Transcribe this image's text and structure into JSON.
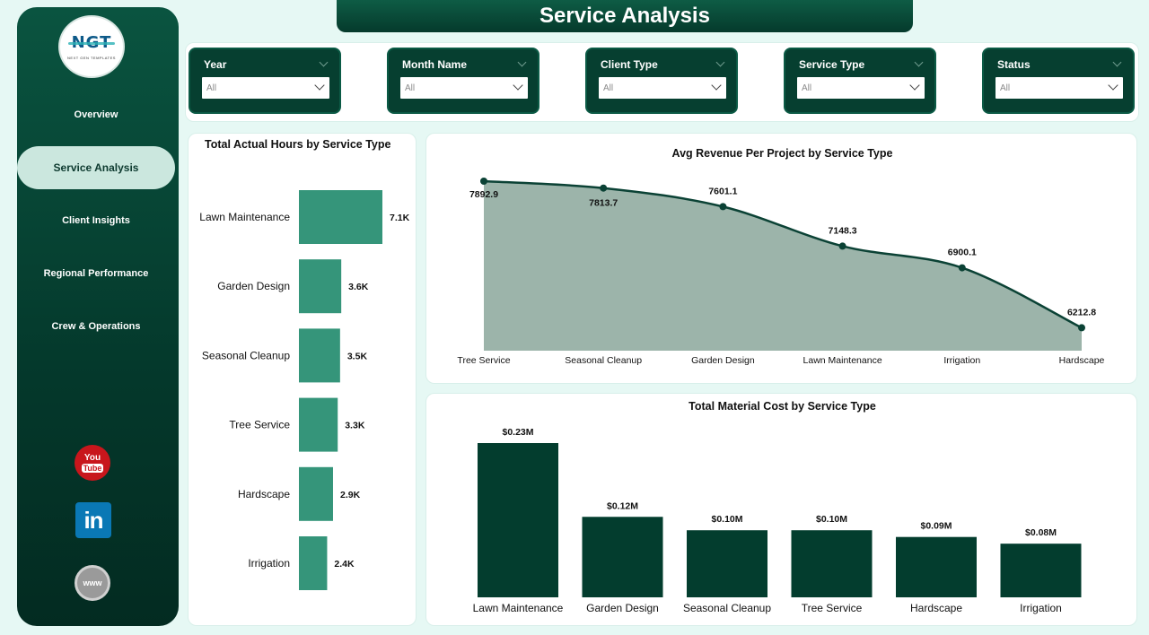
{
  "title": "Service Analysis",
  "sidebar": {
    "logo_text": "NGT",
    "logo_subtext": "NEXT GEN TEMPLATES",
    "items": [
      {
        "label": "Overview",
        "active": false
      },
      {
        "label": "Service Analysis",
        "active": true
      },
      {
        "label": "Client Insights",
        "active": false
      },
      {
        "label": "Regional Performance",
        "active": false
      },
      {
        "label": "Crew & Operations",
        "active": false
      }
    ],
    "social": {
      "youtube_top": "You",
      "youtube_bottom": "Tube",
      "linkedin": "in",
      "website": "www"
    }
  },
  "filters": [
    {
      "label": "Year",
      "value": "All"
    },
    {
      "label": "Month Name",
      "value": "All"
    },
    {
      "label": "Client Type",
      "value": "All"
    },
    {
      "label": "Service Type",
      "value": "All"
    },
    {
      "label": "Status",
      "value": "All"
    }
  ],
  "colors": {
    "hours_bar": "#35957a",
    "area_fill": "#9cb4aa",
    "line": "#0b4235",
    "material_bar": "#033d2e"
  },
  "chart_data": [
    {
      "type": "bar",
      "orientation": "horizontal",
      "title": "Total Actual Hours by Service Type",
      "categories": [
        "Lawn Maintenance",
        "Garden Design",
        "Seasonal Cleanup",
        "Tree Service",
        "Hardscape",
        "Irrigation"
      ],
      "values": [
        7100,
        3600,
        3500,
        3300,
        2900,
        2400
      ],
      "data_labels": [
        "7.1K",
        "3.6K",
        "3.5K",
        "3.3K",
        "2.9K",
        "2.4K"
      ]
    },
    {
      "type": "area",
      "title": "Avg Revenue Per Project by Service Type",
      "categories": [
        "Tree Service",
        "Seasonal Cleanup",
        "Garden Design",
        "Lawn Maintenance",
        "Irrigation",
        "Hardscape"
      ],
      "values": [
        7892.9,
        7813.7,
        7601.1,
        7148.3,
        6900.1,
        6212.8
      ],
      "data_labels": [
        "7892.9",
        "7813.7",
        "7601.1",
        "7148.3",
        "6900.1",
        "6212.8"
      ]
    },
    {
      "type": "bar",
      "title": "Total Material Cost by Service Type",
      "categories": [
        "Lawn Maintenance",
        "Garden Design",
        "Seasonal Cleanup",
        "Tree Service",
        "Hardscape",
        "Irrigation"
      ],
      "values": [
        0.23,
        0.12,
        0.1,
        0.1,
        0.09,
        0.08
      ],
      "data_labels": [
        "$0.23M",
        "$0.12M",
        "$0.10M",
        "$0.10M",
        "$0.09M",
        "$0.08M"
      ]
    }
  ]
}
